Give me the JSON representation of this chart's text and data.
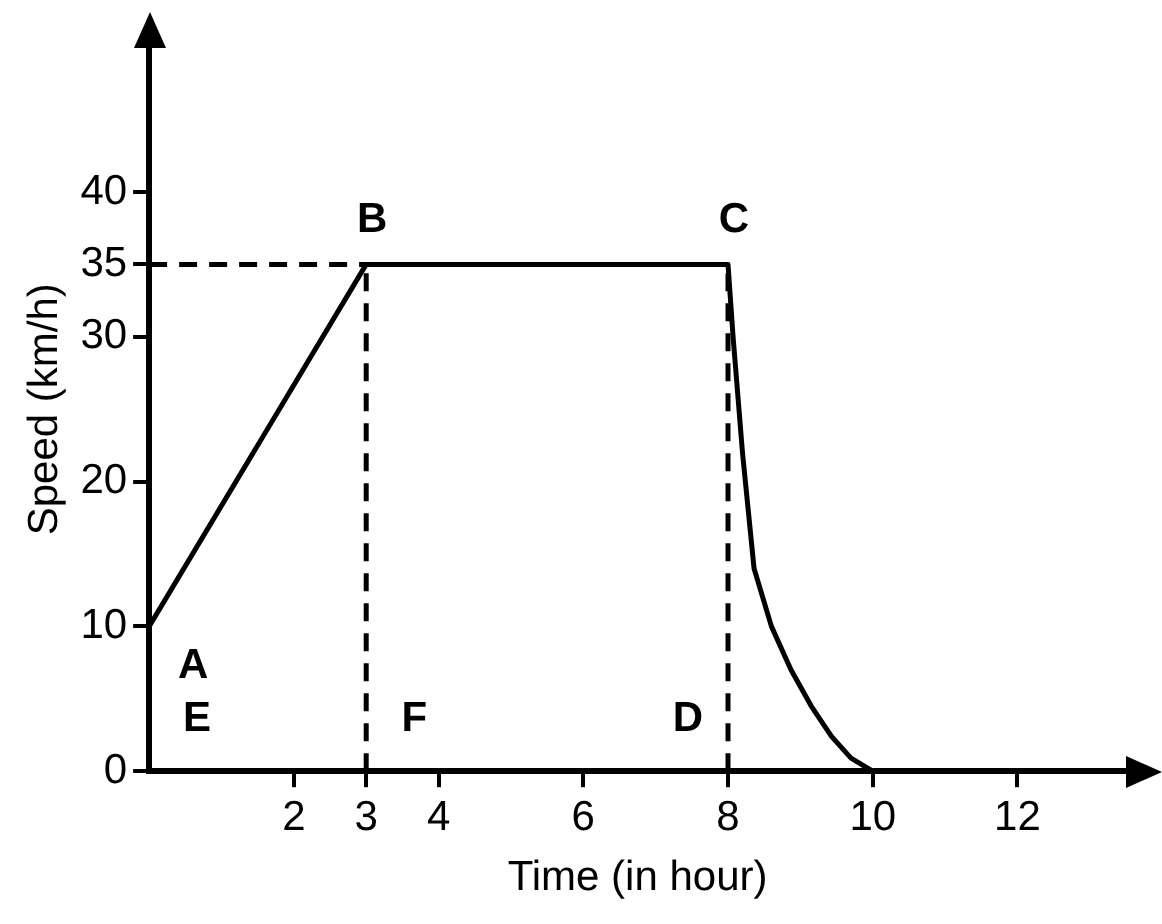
{
  "chart_data": {
    "type": "line",
    "xlabel": "Time (in hour)",
    "ylabel": "Speed (km/h)",
    "xlim": [
      0,
      13.5
    ],
    "ylim": [
      0,
      50
    ],
    "xticks": [
      2,
      3,
      4,
      6,
      8,
      10,
      12
    ],
    "yticks": [
      0,
      10,
      20,
      30,
      35,
      40
    ],
    "grid": false,
    "legend": false,
    "marker": "none",
    "series": [
      {
        "color": "#000000",
        "line_style": "solid",
        "x": [
          0,
          3,
          8,
          8.07,
          8.2,
          8.36,
          8.6,
          8.87,
          9.15,
          9.43,
          9.7,
          10
        ],
        "values": [
          10,
          35,
          35,
          30,
          22,
          14,
          10,
          7,
          4.5,
          2.4,
          0.9,
          0
        ]
      },
      {
        "color": "#000000",
        "line_style": "dashed",
        "x": [
          0,
          3
        ],
        "values": [
          35,
          35
        ]
      },
      {
        "color": "#000000",
        "line_style": "dashed",
        "x": [
          3,
          3
        ],
        "values": [
          0,
          35
        ]
      },
      {
        "color": "#000000",
        "line_style": "dashed",
        "x": [
          8,
          8
        ],
        "values": [
          0,
          35
        ]
      }
    ],
    "annotations": [
      {
        "text": "A",
        "x": 0,
        "y": 10
      },
      {
        "text": "B",
        "x": 3,
        "y": 35
      },
      {
        "text": "C",
        "x": 8,
        "y": 35
      },
      {
        "text": "D",
        "x": 8,
        "y": 0
      },
      "E",
      {
        "text": "F",
        "x": 3,
        "y": 0
      }
    ]
  }
}
